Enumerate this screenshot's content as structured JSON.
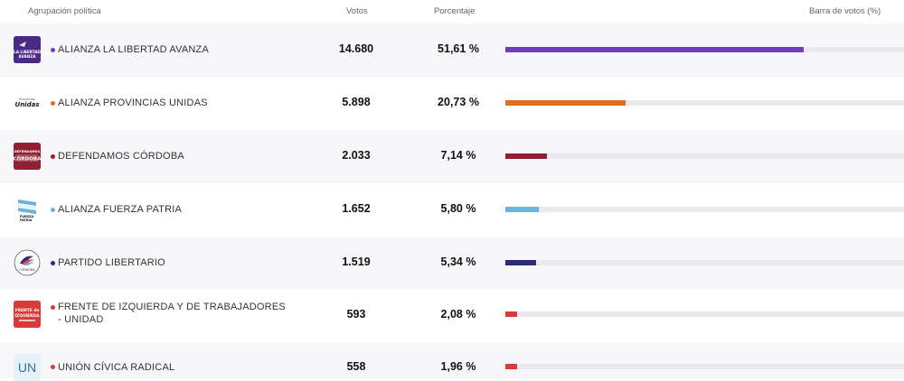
{
  "header": {
    "party": "Agrupación política",
    "votes": "Votos",
    "percent": "Porcentaje",
    "bar": "Barra de votos (%)"
  },
  "rows": [
    {
      "name": "ALIANZA LA LIBERTAD AVANZA",
      "votes": "14.680",
      "percent_num": "51,61",
      "percent_sign": "%",
      "share": 51.61,
      "color": "#6f3dbb",
      "logo_text": "LA LIBERTAD AVANZA",
      "icon": "libertad-avanza-logo"
    },
    {
      "name": "ALIANZA PROVINCIAS UNIDAS",
      "votes": "5.898",
      "percent_num": "20,73",
      "percent_sign": "%",
      "share": 20.73,
      "color": "#e46b1f",
      "logo_text": "Unidas",
      "logo_small": "Provincias",
      "icon": "provincias-unidas-logo"
    },
    {
      "name": "DEFENDAMOS CÓRDOBA",
      "votes": "2.033",
      "percent_num": "7,14",
      "percent_sign": "%",
      "share": 7.14,
      "color": "#8f1f32",
      "logo_text": "CÓRDOBA",
      "logo_small": "DEFENDAMOS",
      "icon": "defendamos-cordoba-logo"
    },
    {
      "name": "ALIANZA FUERZA PATRIA",
      "votes": "1.652",
      "percent_num": "5,80",
      "percent_sign": "%",
      "share": 5.8,
      "color": "#6cb3dc",
      "logo_text": "FUERZA PATRIA",
      "icon": "fuerza-patria-logo"
    },
    {
      "name": "PARTIDO LIBERTARIO",
      "votes": "1.519",
      "percent_num": "5,34",
      "percent_sign": "%",
      "share": 5.34,
      "color": "#2f2a78",
      "logo_text": "CÓRDOBA",
      "icon": "partido-libertario-logo"
    },
    {
      "name": "FRENTE DE IZQUIERDA Y DE TRABAJADORES",
      "name2": "- UNIDAD",
      "votes": "593",
      "percent_num": "2,08",
      "percent_sign": "%",
      "share": 2.08,
      "color": "#d93a3a",
      "logo_text": "FRENTE de IZQUIERDA",
      "icon": "frente-izquierda-logo"
    },
    {
      "name": "UNIÓN CÍVICA RADICAL",
      "votes": "558",
      "percent_num": "1,96",
      "percent_sign": "%",
      "share": 1.96,
      "color": "#d93a3a",
      "logo_text": "UN",
      "icon": "ucr-logo"
    }
  ]
}
